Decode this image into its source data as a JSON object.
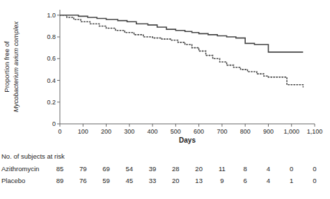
{
  "chart_data": {
    "type": "step",
    "xlabel": "Days",
    "ylabel": [
      "Proportion free of",
      "Mycobacterium avium",
      "complex"
    ],
    "xlim": [
      0,
      1100
    ],
    "ylim": [
      0,
      1.05
    ],
    "xticks": [
      0,
      100,
      200,
      300,
      400,
      500,
      600,
      700,
      800,
      900,
      {
        "value": 1000,
        "label": "1,000"
      },
      {
        "value": 1100,
        "label": "1,100"
      }
    ],
    "yticks": [
      0,
      0.2,
      0.4,
      0.6,
      0.8,
      {
        "value": 1.0,
        "label": "1.0"
      }
    ],
    "grid": false,
    "series": [
      {
        "name": "Azithromycin",
        "color": "#444444",
        "line_style": "solid",
        "x": [
          0,
          40,
          80,
          120,
          160,
          200,
          250,
          290,
          330,
          380,
          420,
          460,
          500,
          540,
          570,
          600,
          640,
          680,
          720,
          760,
          800,
          840,
          900,
          960,
          1050
        ],
        "values": [
          1.0,
          1.0,
          0.99,
          0.98,
          0.97,
          0.96,
          0.95,
          0.94,
          0.92,
          0.91,
          0.89,
          0.87,
          0.86,
          0.85,
          0.84,
          0.83,
          0.82,
          0.81,
          0.8,
          0.79,
          0.74,
          0.73,
          0.66,
          0.66,
          0.66
        ]
      },
      {
        "name": "Placebo",
        "color": "#444444",
        "line_style": "dotted",
        "x": [
          0,
          30,
          60,
          90,
          130,
          170,
          200,
          240,
          280,
          320,
          360,
          400,
          440,
          480,
          510,
          540,
          570,
          600,
          630,
          660,
          690,
          720,
          750,
          780,
          810,
          850,
          880,
          900,
          940,
          980,
          1050
        ],
        "values": [
          1.0,
          0.98,
          0.96,
          0.94,
          0.92,
          0.9,
          0.88,
          0.86,
          0.84,
          0.82,
          0.8,
          0.79,
          0.78,
          0.77,
          0.75,
          0.73,
          0.7,
          0.67,
          0.63,
          0.6,
          0.57,
          0.54,
          0.52,
          0.5,
          0.48,
          0.46,
          0.44,
          0.43,
          0.43,
          0.36,
          0.34
        ]
      }
    ],
    "risk_table": {
      "header": "No. of subjects at risk",
      "x": [
        0,
        100,
        200,
        300,
        400,
        500,
        600,
        700,
        800,
        900,
        1000,
        1100
      ],
      "rows": [
        {
          "label": "Azithromycin",
          "values": [
            85,
            79,
            69,
            54,
            39,
            28,
            20,
            11,
            8,
            4,
            0,
            0
          ]
        },
        {
          "label": "Placebo",
          "values": [
            89,
            76,
            59,
            45,
            33,
            20,
            13,
            9,
            6,
            4,
            1,
            0
          ]
        }
      ]
    }
  }
}
